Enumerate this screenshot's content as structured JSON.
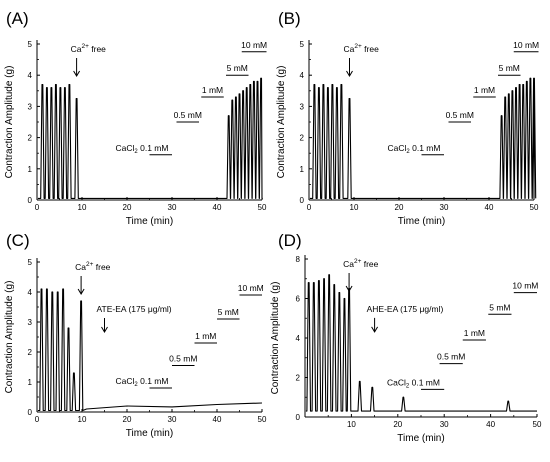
{
  "chart_data": [
    {
      "type": "line",
      "panel_label": "(A)",
      "xlabel": "Time (min)",
      "ylabel": "Contraction Amplitude (g)",
      "xlim": [
        0,
        50
      ],
      "ylim": [
        0,
        5
      ],
      "xticks": [
        "0",
        "10",
        "20",
        "30",
        "40",
        "50"
      ],
      "yticks": [
        "0",
        "1",
        "2",
        "3",
        "4",
        "5"
      ],
      "baseline": 0.05,
      "peaks": [
        {
          "x": 1.2,
          "y": 3.7
        },
        {
          "x": 2.2,
          "y": 3.6
        },
        {
          "x": 3.2,
          "y": 3.6
        },
        {
          "x": 4.2,
          "y": 3.7
        },
        {
          "x": 5.2,
          "y": 3.6
        },
        {
          "x": 6.2,
          "y": 3.6
        },
        {
          "x": 7.2,
          "y": 3.7
        },
        {
          "x": 8.8,
          "y": 3.25
        },
        {
          "x": 42.6,
          "y": 2.7
        },
        {
          "x": 43.4,
          "y": 3.2
        },
        {
          "x": 44.2,
          "y": 3.3
        },
        {
          "x": 45.0,
          "y": 3.4
        },
        {
          "x": 45.8,
          "y": 3.5
        },
        {
          "x": 46.6,
          "y": 3.6
        },
        {
          "x": 47.4,
          "y": 3.7
        },
        {
          "x": 48.2,
          "y": 3.8
        },
        {
          "x": 49.0,
          "y": 3.8
        },
        {
          "x": 49.8,
          "y": 3.9
        }
      ],
      "arrow": {
        "label_pre": "Ca",
        "label_sup": "2+",
        "label_post": " free",
        "x": 8.8
      },
      "bars": [
        {
          "label_pre": "CaCl",
          "label_sub": "2",
          "label_post": " 0.1 mM",
          "x1": 25,
          "x2": 30,
          "y": 1.45
        },
        {
          "label": "0.5 mM",
          "x1": 31,
          "x2": 36,
          "y": 2.5
        },
        {
          "label": "1 mM",
          "x1": 36.5,
          "x2": 41.5,
          "y": 3.3
        },
        {
          "label": "5 mM",
          "x1": 42,
          "x2": 47,
          "y": 4.0
        },
        {
          "label": "10 mM",
          "x1": 45.5,
          "x2": 51,
          "y": 4.75
        }
      ]
    },
    {
      "type": "line",
      "panel_label": "(B)",
      "xlabel": "Time (min)",
      "ylabel": "Contraction Amplitude (g)",
      "xlim": [
        0,
        50
      ],
      "ylim": [
        0,
        5
      ],
      "xticks": [
        "0",
        "10",
        "20",
        "30",
        "40",
        "50"
      ],
      "yticks": [
        "0",
        "1",
        "2",
        "3",
        "4",
        "5"
      ],
      "baseline": 0.05,
      "peaks": [
        {
          "x": 1.2,
          "y": 3.7
        },
        {
          "x": 2.2,
          "y": 3.6
        },
        {
          "x": 3.2,
          "y": 3.7
        },
        {
          "x": 4.2,
          "y": 3.6
        },
        {
          "x": 5.2,
          "y": 3.7
        },
        {
          "x": 6.2,
          "y": 3.6
        },
        {
          "x": 7.2,
          "y": 3.7
        },
        {
          "x": 9.0,
          "y": 3.25
        },
        {
          "x": 42.8,
          "y": 2.7
        },
        {
          "x": 43.6,
          "y": 3.3
        },
        {
          "x": 44.4,
          "y": 3.4
        },
        {
          "x": 45.2,
          "y": 3.5
        },
        {
          "x": 46.0,
          "y": 3.6
        },
        {
          "x": 46.8,
          "y": 3.7
        },
        {
          "x": 47.6,
          "y": 3.7
        },
        {
          "x": 48.4,
          "y": 3.8
        },
        {
          "x": 49.2,
          "y": 3.9
        },
        {
          "x": 50.0,
          "y": 3.9
        }
      ],
      "arrow": {
        "label_pre": "Ca",
        "label_sup": "2+",
        "label_post": " free",
        "x": 9.0
      },
      "bars": [
        {
          "label_pre": "CaCl",
          "label_sub": "2",
          "label_post": " 0.1 mM",
          "x1": 25,
          "x2": 30,
          "y": 1.45
        },
        {
          "label": "0.5 mM",
          "x1": 31,
          "x2": 36,
          "y": 2.5
        },
        {
          "label": "1 mM",
          "x1": 36.5,
          "x2": 41.5,
          "y": 3.3
        },
        {
          "label": "5 mM",
          "x1": 42,
          "x2": 47,
          "y": 4.0
        },
        {
          "label": "10 mM",
          "x1": 45.5,
          "x2": 51,
          "y": 4.75
        }
      ]
    },
    {
      "type": "line",
      "panel_label": "(C)",
      "xlabel": "Time (min)",
      "ylabel": "Contraction Amplitude (g)",
      "xlim": [
        0,
        50
      ],
      "ylim": [
        0,
        5
      ],
      "xticks": [
        "0",
        "10",
        "20",
        "30",
        "40",
        "50"
      ],
      "yticks": [
        "0",
        "1",
        "2",
        "3",
        "4",
        "5"
      ],
      "baseline": 0.05,
      "peaks": [
        {
          "x": 1.0,
          "y": 4.1
        },
        {
          "x": 2.2,
          "y": 4.1
        },
        {
          "x": 3.4,
          "y": 4.0
        },
        {
          "x": 4.6,
          "y": 4.0
        },
        {
          "x": 5.8,
          "y": 4.1
        },
        {
          "x": 7.0,
          "y": 2.8
        },
        {
          "x": 8.2,
          "y": 1.3
        },
        {
          "x": 9.8,
          "y": 3.7
        }
      ],
      "tail": [
        [
          11,
          0.1
        ],
        [
          20,
          0.2
        ],
        [
          30,
          0.17
        ],
        [
          40,
          0.25
        ],
        [
          50,
          0.3
        ]
      ],
      "arrow": {
        "label_pre": "Ca",
        "label_sup": "2+",
        "label_post": " free",
        "x": 9.8
      },
      "arrow2": {
        "label": "ATE-EA (175 μg/ml)",
        "x": 15
      },
      "bars": [
        {
          "label_pre": "CaCl",
          "label_sub": "2",
          "label_post": " 0.1 mM",
          "x1": 25,
          "x2": 30,
          "y": 0.8
        },
        {
          "label": "0.5 mM",
          "x1": 30,
          "x2": 35,
          "y": 1.55
        },
        {
          "label": "1 mM",
          "x1": 35,
          "x2": 40,
          "y": 2.3
        },
        {
          "label": "5 mM",
          "x1": 40,
          "x2": 45,
          "y": 3.1
        },
        {
          "label": "10 mM",
          "x1": 45,
          "x2": 50,
          "y": 3.9
        }
      ]
    },
    {
      "type": "line",
      "panel_label": "(D)",
      "xlabel": "Time (min)",
      "ylabel": "Contraction Amplitude (g)",
      "xlim": [
        0,
        50
      ],
      "ylim": [
        0,
        8
      ],
      "xticks": [
        "10",
        "20",
        "30",
        "40",
        "50"
      ],
      "yticks": [
        "0",
        "2",
        "4",
        "6",
        "8"
      ],
      "baseline": 0.3,
      "peaks": [
        {
          "x": 0.8,
          "y": 6.8
        },
        {
          "x": 1.9,
          "y": 6.8
        },
        {
          "x": 3.0,
          "y": 6.9
        },
        {
          "x": 4.1,
          "y": 7.0
        },
        {
          "x": 5.2,
          "y": 7.2
        },
        {
          "x": 6.3,
          "y": 6.7
        },
        {
          "x": 7.4,
          "y": 6.3
        },
        {
          "x": 8.5,
          "y": 6.0
        },
        {
          "x": 9.5,
          "y": 6.5
        },
        {
          "x": 11.8,
          "y": 1.8
        },
        {
          "x": 14.5,
          "y": 1.5
        },
        {
          "x": 21.2,
          "y": 1.0
        },
        {
          "x": 43.8,
          "y": 0.8
        }
      ],
      "arrow": {
        "label_pre": "Ca",
        "label_sup": "2+",
        "label_post": " free",
        "x": 9.5
      },
      "arrow2": {
        "label": "AHE-EA (175 μg/ml)",
        "x": 15
      },
      "bars": [
        {
          "label_pre": "CaCl",
          "label_sub": "2",
          "label_post": " 0.1 mM",
          "x1": 25,
          "x2": 30,
          "y": 1.4
        },
        {
          "label": "0.5 mM",
          "x1": 29,
          "x2": 34,
          "y": 2.7
        },
        {
          "label": "1 mM",
          "x1": 34,
          "x2": 39,
          "y": 3.9
        },
        {
          "label": "5 mM",
          "x1": 39.5,
          "x2": 44.5,
          "y": 5.2
        },
        {
          "label": "10 mM",
          "x1": 45,
          "x2": 50,
          "y": 6.3
        }
      ]
    }
  ]
}
